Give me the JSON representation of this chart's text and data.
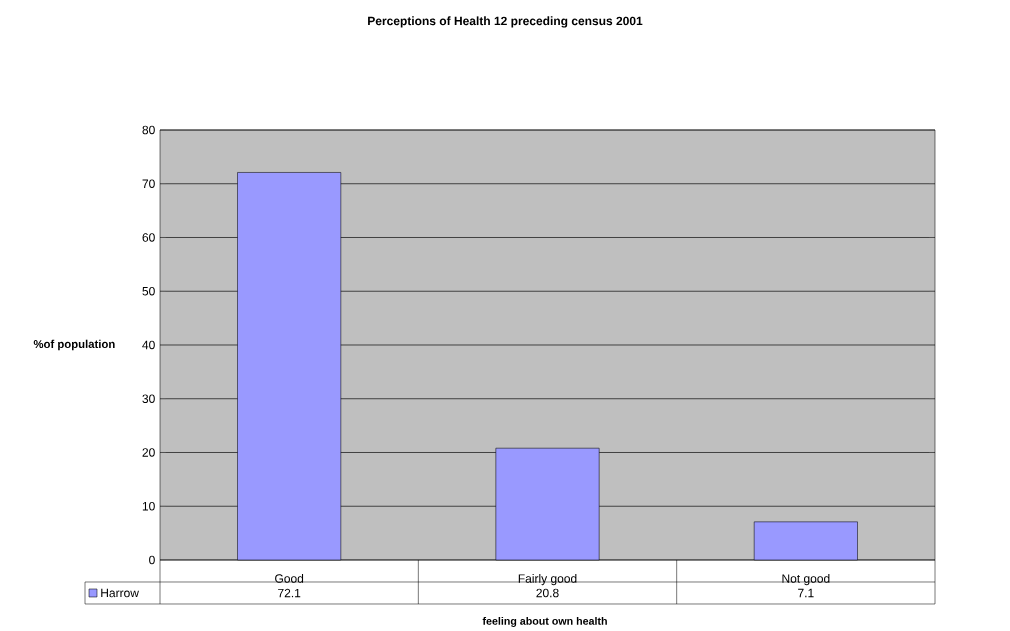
{
  "chart_data": {
    "type": "bar",
    "title": "Perceptions of Health 12 preceding census 2001",
    "xlabel": "feeling about own health",
    "ylabel": "%of population",
    "categories": [
      "Good",
      "Fairly good",
      "Not good"
    ],
    "series": [
      {
        "name": "Harrow",
        "color": "#9999ff",
        "values": [
          72.1,
          20.8,
          7.1
        ]
      }
    ],
    "ylim": [
      0,
      80
    ],
    "yticks": [
      0,
      10,
      20,
      30,
      40,
      50,
      60,
      70,
      80
    ],
    "grid": "y",
    "legend": "bottom left",
    "data_labels": true
  }
}
